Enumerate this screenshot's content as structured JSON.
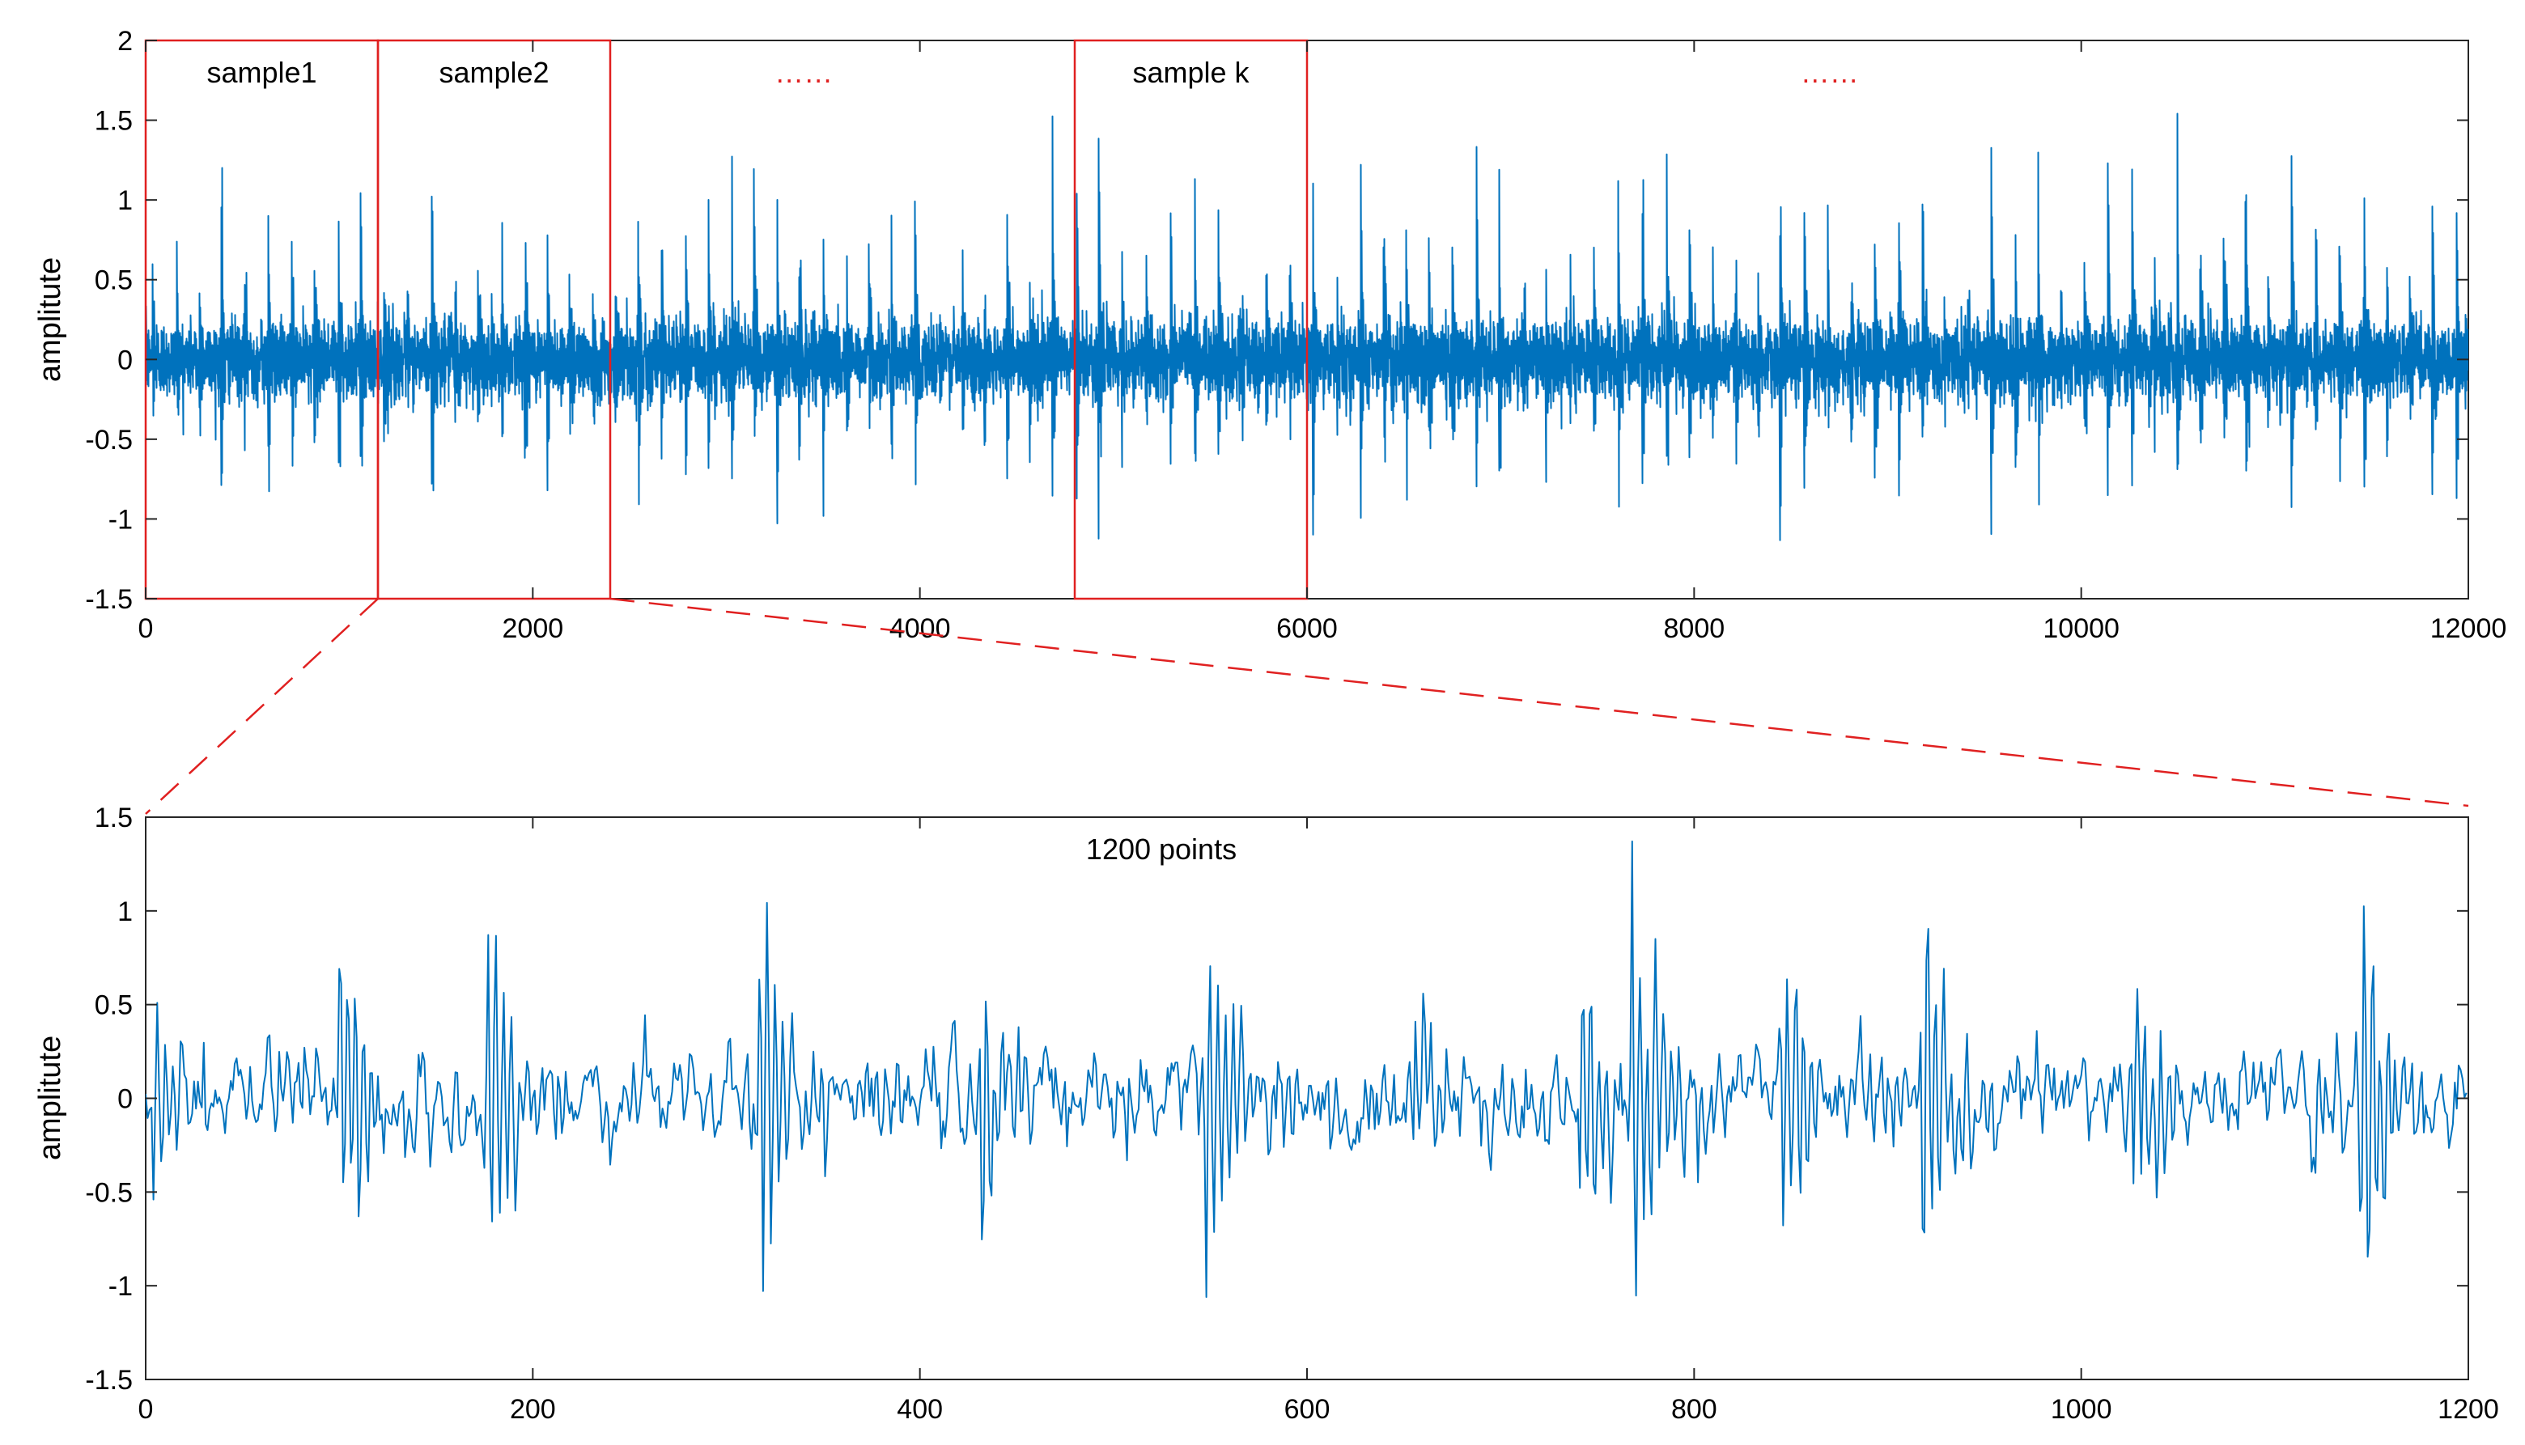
{
  "chart_data": [
    {
      "type": "line",
      "title": "",
      "xlabel": "",
      "ylabel": "amplitute",
      "xlim": [
        0,
        12000
      ],
      "ylim": [
        -1.5,
        2
      ],
      "xticks": [
        0,
        2000,
        4000,
        6000,
        8000,
        10000,
        12000
      ],
      "yticks": [
        -1.5,
        -1,
        -0.5,
        0,
        0.5,
        1,
        1.5,
        2
      ],
      "xtick_labels": [
        "0",
        "2000",
        "4000",
        "6000",
        "8000",
        "10000",
        "12000"
      ],
      "ytick_labels": [
        "-1.5",
        "-1",
        "-0.5",
        "0",
        "0.5",
        "1",
        "1.5",
        "2"
      ],
      "grid": false,
      "line_color": "#0072BD",
      "signal": {
        "n_points": 12000,
        "impulse_period": 120,
        "peak_range": [
          -1.2,
          1.5
        ],
        "noise_amplitude": 0.3
      },
      "segments": [
        {
          "label": "sample1",
          "x_start": 0,
          "x_end": 1200
        },
        {
          "label": "sample2",
          "x_start": 1200,
          "x_end": 2400
        },
        {
          "label": "sample k",
          "x_start": 4800,
          "x_end": 6000
        }
      ],
      "ellipsis_labels": [
        {
          "text": "……",
          "x_center": 3400
        },
        {
          "text": "……",
          "x_center": 8700
        }
      ],
      "segment_color": "#e02020"
    },
    {
      "type": "line",
      "title": "",
      "xlabel": "",
      "ylabel": "amplitute",
      "annotation": "1200 points",
      "xlim": [
        0,
        1200
      ],
      "ylim": [
        -1.5,
        1.5
      ],
      "xticks": [
        0,
        200,
        400,
        600,
        800,
        1000,
        1200
      ],
      "yticks": [
        -1.5,
        -1,
        -0.5,
        0,
        0.5,
        1,
        1.5
      ],
      "xtick_labels": [
        "0",
        "200",
        "400",
        "600",
        "800",
        "1000",
        "1200"
      ],
      "ytick_labels": [
        "-1.5",
        "-1",
        "-0.5",
        "0",
        "0.5",
        "1",
        "1.5"
      ],
      "grid": false,
      "line_color": "#0072BD",
      "signal": {
        "n_points": 1200,
        "impulse_centers": [
          5,
          100,
          177,
          318,
          432,
          548,
          655,
          742,
          768,
          845,
          918,
          1027,
          1145
        ],
        "impulse_peaks": [
          0.45,
          0.9,
          0.9,
          1.15,
          0.75,
          1.12,
          0.6,
          0.8,
          1.35,
          0.85,
          1.15,
          0.8,
          1.1
        ],
        "noise_amplitude": 0.25
      }
    }
  ],
  "zoom_connector": {
    "from_segment": "sample2",
    "style": "dashed",
    "color": "#e02020"
  }
}
